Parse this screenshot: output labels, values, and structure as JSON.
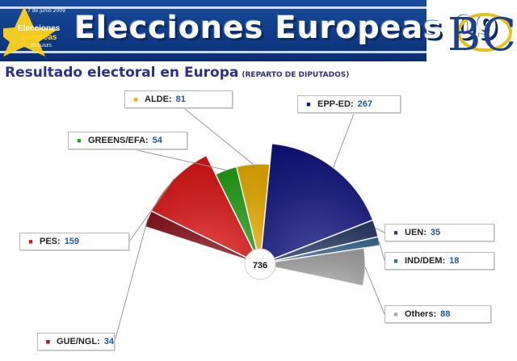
{
  "header": {
    "logo": {
      "date": "7 de junio 2009",
      "line1": "Elecciones",
      "line2": "europeas",
      "line3": "TÚ ELIGES"
    },
    "title": "Elecciones Europeas 09",
    "bc_logo": "BC"
  },
  "subtitle": {
    "main": "Resultado electoral en Europa",
    "note": "(REPARTO DE DIPUTADOS)"
  },
  "colors": {
    "banner": "#0e3a86",
    "subtitle": "#2e2f8c",
    "value_text": "#1f56a8"
  },
  "chart_data": {
    "type": "pie",
    "subtype": "hemicycle",
    "total": 736,
    "series": [
      {
        "name": "GUE/NGL",
        "value": 34,
        "color": "#8e1420"
      },
      {
        "name": "PES",
        "value": 159,
        "color": "#e01414"
      },
      {
        "name": "GREENS/EFA",
        "value": 54,
        "color": "#26a31a"
      },
      {
        "name": "ALDE",
        "value": 81,
        "color": "#eeb200"
      },
      {
        "name": "EPP-ED",
        "value": 267,
        "color": "#10147e"
      },
      {
        "name": "UEN",
        "value": 35,
        "color": "#2a3e68"
      },
      {
        "name": "IND/DEM",
        "value": 18,
        "color": "#3d6e94"
      },
      {
        "name": "Others",
        "value": 88,
        "color": "#a9a9a9"
      }
    ],
    "icons": {
      "GUE/NGL": "gue-ngl-logo-icon",
      "PES": "pes-logo-icon",
      "GREENS/EFA": "greens-efa-logo-icon",
      "ALDE": "alde-logo-icon",
      "EPP-ED": "epp-ed-logo-icon",
      "UEN": "uen-logo-icon",
      "IND/DEM": "ind-dem-logo-icon",
      "Others": "others-icon"
    }
  }
}
